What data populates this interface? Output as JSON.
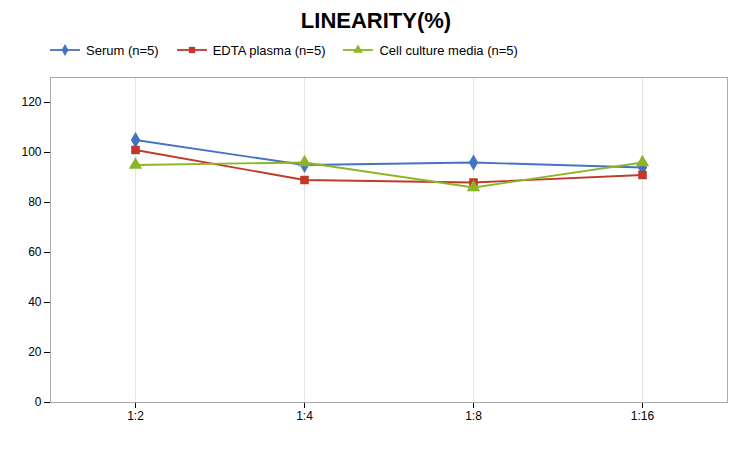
{
  "chart_data": {
    "type": "line",
    "title": "LINEARITY(%)",
    "categories": [
      "1:2",
      "1:4",
      "1:8",
      "1:16"
    ],
    "series": [
      {
        "name": "Serum (n=5)",
        "color": "#4472C4",
        "marker": "diamond",
        "values": [
          105,
          95,
          96,
          94
        ]
      },
      {
        "name": "EDTA plasma (n=5)",
        "color": "#C0392B",
        "marker": "square",
        "values": [
          101,
          89,
          88,
          91
        ]
      },
      {
        "name": "Cell culture media (n=5)",
        "color": "#8DB526",
        "marker": "triangle",
        "values": [
          95,
          96,
          86,
          96
        ]
      }
    ],
    "ylim": [
      0,
      130
    ],
    "yticks": [
      0,
      20,
      40,
      60,
      80,
      100,
      120
    ],
    "grid": "x",
    "legend": "top"
  }
}
